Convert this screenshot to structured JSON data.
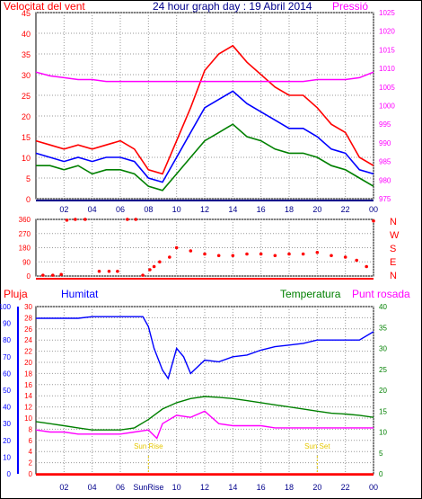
{
  "chart_data": [
    {
      "type": "line",
      "title": "24 hour graph day : 19 Abril 2014",
      "left_axis_label": "Velocitat del vent",
      "right_axis_label": "Pressió",
      "y_left": {
        "min": 0,
        "max": 45,
        "ticks": [
          0,
          5,
          10,
          15,
          20,
          25,
          30,
          35,
          40,
          45
        ]
      },
      "y_right": {
        "min": 975,
        "max": 1025,
        "ticks": [
          975,
          980,
          985,
          990,
          995,
          1000,
          1005,
          1010,
          1015,
          1020,
          1025
        ]
      },
      "x_ticks": [
        "02",
        "04",
        "06",
        "08",
        "10",
        "12",
        "14",
        "16",
        "18",
        "20",
        "22",
        "00"
      ],
      "grid": true,
      "series": [
        {
          "role": "gust",
          "color": "#ff0000",
          "x": [
            0,
            1,
            2,
            3,
            4,
            5,
            6,
            7,
            8,
            9,
            10,
            11,
            12,
            13,
            14,
            15,
            16,
            17,
            18,
            19,
            20,
            21,
            22,
            23,
            24
          ],
          "values": [
            14,
            13,
            12,
            13,
            12,
            13,
            14,
            12,
            7,
            6,
            14,
            22,
            31,
            35,
            37,
            33,
            30,
            27,
            25,
            25,
            22,
            18,
            16,
            10,
            8
          ]
        },
        {
          "role": "average",
          "color": "#0000ff",
          "x": [
            0,
            1,
            2,
            3,
            4,
            5,
            6,
            7,
            8,
            9,
            10,
            11,
            12,
            13,
            14,
            15,
            16,
            17,
            18,
            19,
            20,
            21,
            22,
            23,
            24
          ],
          "values": [
            11,
            10,
            9,
            10,
            9,
            10,
            10,
            9,
            5,
            4,
            10,
            16,
            22,
            24,
            26,
            23,
            21,
            19,
            17,
            17,
            15,
            12,
            11,
            7,
            6
          ]
        },
        {
          "role": "wind",
          "color": "#008000",
          "x": [
            0,
            1,
            2,
            3,
            4,
            5,
            6,
            7,
            8,
            9,
            10,
            11,
            12,
            13,
            14,
            15,
            16,
            17,
            18,
            19,
            20,
            21,
            22,
            23,
            24
          ],
          "values": [
            8,
            8,
            7,
            8,
            6,
            7,
            7,
            6,
            3,
            2,
            6,
            10,
            14,
            16,
            18,
            15,
            14,
            12,
            11,
            11,
            10,
            8,
            7,
            5,
            3
          ]
        },
        {
          "role": "pressure",
          "color": "#ff00ff",
          "axis": "right",
          "x": [
            0,
            1,
            2,
            3,
            4,
            5,
            6,
            7,
            8,
            9,
            10,
            11,
            12,
            13,
            14,
            15,
            16,
            17,
            18,
            19,
            20,
            21,
            22,
            23,
            24
          ],
          "values": [
            1009,
            1008,
            1007.5,
            1007,
            1007,
            1006.5,
            1006.5,
            1006.5,
            1006.5,
            1006.5,
            1006.5,
            1006.5,
            1006.5,
            1006.5,
            1006.5,
            1006.5,
            1006.5,
            1006.5,
            1006.5,
            1006.5,
            1007,
            1007,
            1007,
            1007.5,
            1009
          ]
        }
      ]
    },
    {
      "type": "scatter",
      "y_ticks": [
        0,
        90,
        180,
        270,
        360
      ],
      "y_min": 0,
      "y_max": 360,
      "compass": [
        "N",
        "W",
        "S",
        "E",
        "N"
      ],
      "x_ticks": [
        "02",
        "04",
        "06",
        "08",
        "10",
        "12",
        "14",
        "16",
        "18",
        "20",
        "22",
        "00"
      ],
      "grid": true,
      "series": [
        {
          "role": "direction",
          "color": "#ff0000",
          "x": [
            0.5,
            1.2,
            1.8,
            2.2,
            2.8,
            3.5,
            4.5,
            5.2,
            5.8,
            6.5,
            7.1,
            7.6,
            8.1,
            8.4,
            8.8,
            9.5,
            10,
            11,
            12,
            13,
            14,
            15,
            16,
            17,
            18,
            19,
            20,
            21,
            22,
            22.8,
            23.5,
            24
          ],
          "values": [
            5,
            5,
            10,
            355,
            360,
            360,
            30,
            30,
            30,
            360,
            360,
            5,
            40,
            60,
            90,
            120,
            180,
            160,
            140,
            130,
            130,
            140,
            140,
            130,
            140,
            140,
            150,
            130,
            120,
            100,
            60,
            350
          ]
        }
      ]
    },
    {
      "type": "line",
      "labels": {
        "rain": "Pluja",
        "humidity": "Humitat",
        "temperature": "Temperatura",
        "dewpoint": "Punt rosada"
      },
      "y_rain": {
        "min": 0,
        "max": 100,
        "ticks": [
          0,
          10,
          20,
          30,
          40,
          50,
          60,
          70,
          80,
          90,
          100
        ]
      },
      "y_left": {
        "min": 0,
        "max": 30,
        "ticks": [
          0,
          2,
          4,
          6,
          8,
          10,
          12,
          14,
          16,
          18,
          20,
          22,
          24,
          26,
          28,
          30
        ]
      },
      "y_right": {
        "min": 0,
        "max": 40,
        "ticks": [
          0,
          5,
          10,
          15,
          20,
          25,
          30,
          35,
          40
        ]
      },
      "x_ticks": [
        "02",
        "04",
        "06",
        "SunRise",
        "10",
        "12",
        "14",
        "16",
        "18",
        "20",
        "22",
        "00"
      ],
      "annotations": [
        {
          "text": "Sun Rise",
          "x": 8.0
        },
        {
          "text": "Sun Set",
          "x": 20.0
        }
      ],
      "grid": true,
      "series": [
        {
          "role": "humidity",
          "color": "#0000ff",
          "axis": "rain",
          "x": [
            0,
            1,
            2,
            3,
            4,
            5,
            6,
            7,
            7.6,
            8,
            8.4,
            9,
            9.4,
            10,
            10.5,
            11,
            12,
            13,
            14,
            15,
            16,
            17,
            18,
            19,
            20,
            21,
            22,
            23,
            24
          ],
          "values": [
            93,
            93,
            93,
            93,
            94,
            94,
            94,
            94,
            94,
            88,
            75,
            62,
            57,
            75,
            70,
            60,
            68,
            67,
            70,
            71,
            74,
            76,
            77,
            78,
            80,
            80,
            80,
            80,
            85
          ]
        },
        {
          "role": "temperature",
          "color": "#008000",
          "axis": "right",
          "x": [
            0,
            1,
            2,
            3,
            4,
            5,
            6,
            7,
            8,
            9,
            10,
            11,
            12,
            13,
            14,
            15,
            16,
            17,
            18,
            19,
            20,
            21,
            22,
            23,
            24
          ],
          "values": [
            12.5,
            12,
            11.5,
            11,
            10.5,
            10.5,
            10.5,
            11,
            13,
            15.5,
            17,
            18,
            18.5,
            18.3,
            18,
            17.5,
            17,
            16.5,
            16,
            15.5,
            15,
            14.5,
            14.3,
            14,
            13.5
          ]
        },
        {
          "role": "dewpoint",
          "color": "#ff00ff",
          "axis": "right",
          "x": [
            0,
            1,
            2,
            3,
            4,
            5,
            6,
            7,
            8,
            8.6,
            9,
            10,
            11,
            12,
            13,
            14,
            15,
            16,
            17,
            18,
            19,
            20,
            21,
            22,
            23,
            24
          ],
          "values": [
            10.5,
            10,
            10,
            9.5,
            9.5,
            9.5,
            9.5,
            10,
            10.5,
            8.5,
            12,
            14,
            13.5,
            15,
            12,
            11.5,
            11.5,
            11.5,
            11,
            11,
            11,
            11,
            11,
            11,
            11,
            11
          ]
        },
        {
          "role": "rain",
          "color": "#ff0000",
          "axis": "rain",
          "x": [
            0,
            24
          ],
          "values": [
            0,
            0
          ]
        }
      ]
    }
  ]
}
